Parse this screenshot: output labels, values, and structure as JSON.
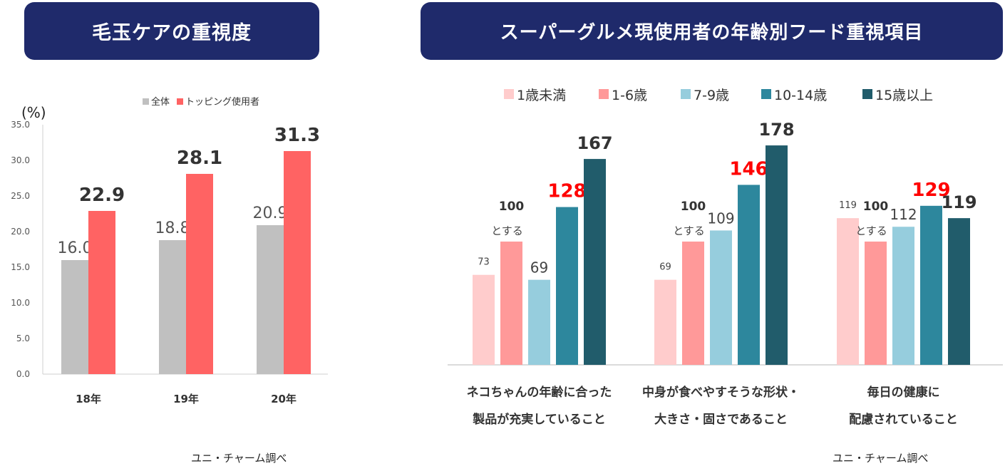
{
  "panel_left": {
    "title": "毛玉ケアの重視度",
    "source": "ユニ・チャーム調べ"
  },
  "panel_right": {
    "title": "スーパーグルメ現使用者の年齢別フード重視項目",
    "source": "ユニ・チャーム調べ"
  },
  "colors": {
    "title_bg": "#1f2a6b",
    "gray": "#c0c0c0",
    "red": "#ff6363",
    "age1": "#ffcccc",
    "age2": "#ff9999",
    "age3": "#96cddd",
    "age4": "#2d879d",
    "age5": "#215c6b",
    "highlight": "#ff0000"
  },
  "chart_data": [
    {
      "type": "bar",
      "title": "毛玉ケアの重視度",
      "ylabel": "(%)",
      "ylim": [
        0,
        35
      ],
      "yticks": [
        "0.0",
        "5.0",
        "10.0",
        "15.0",
        "20.0",
        "25.0",
        "30.0",
        "35.0"
      ],
      "legend_position": "top",
      "categories": [
        "18年",
        "19年",
        "20年"
      ],
      "series": [
        {
          "name": "全体",
          "values": [
            16.0,
            18.8,
            20.9
          ],
          "labels": [
            "16.0",
            "18.8",
            "20.9"
          ]
        },
        {
          "name": "トッピング使用者",
          "values": [
            22.9,
            28.1,
            31.3
          ],
          "labels": [
            "22.9",
            "28.1",
            "31.3"
          ]
        }
      ]
    },
    {
      "type": "bar",
      "title": "スーパーグルメ現使用者の年齢別フード重視項目",
      "legend_position": "top",
      "categories": [
        [
          "ネコちゃんの年齢に合った",
          "製品が充実していること"
        ],
        [
          "中身が食べやすそうな形状・",
          "大きさ・固さであること"
        ],
        [
          "毎日の健康に",
          "配慮されていること"
        ]
      ],
      "series": [
        {
          "name": "1歳未満",
          "values": [
            73,
            69,
            119
          ],
          "labels": [
            "73",
            "69",
            "119"
          ]
        },
        {
          "name": "1-6歳",
          "values": [
            100,
            100,
            100
          ],
          "labels": [
            "100",
            "100",
            "100"
          ],
          "sublabel": "とする"
        },
        {
          "name": "7-9歳",
          "values": [
            69,
            109,
            112
          ],
          "labels": [
            "69",
            "109",
            "112"
          ]
        },
        {
          "name": "10-14歳",
          "values": [
            128,
            146,
            129
          ],
          "labels": [
            "128",
            "146",
            "129"
          ]
        },
        {
          "name": "15歳以上",
          "values": [
            167,
            178,
            119
          ],
          "labels": [
            "167",
            "178",
            "119"
          ]
        }
      ]
    }
  ]
}
